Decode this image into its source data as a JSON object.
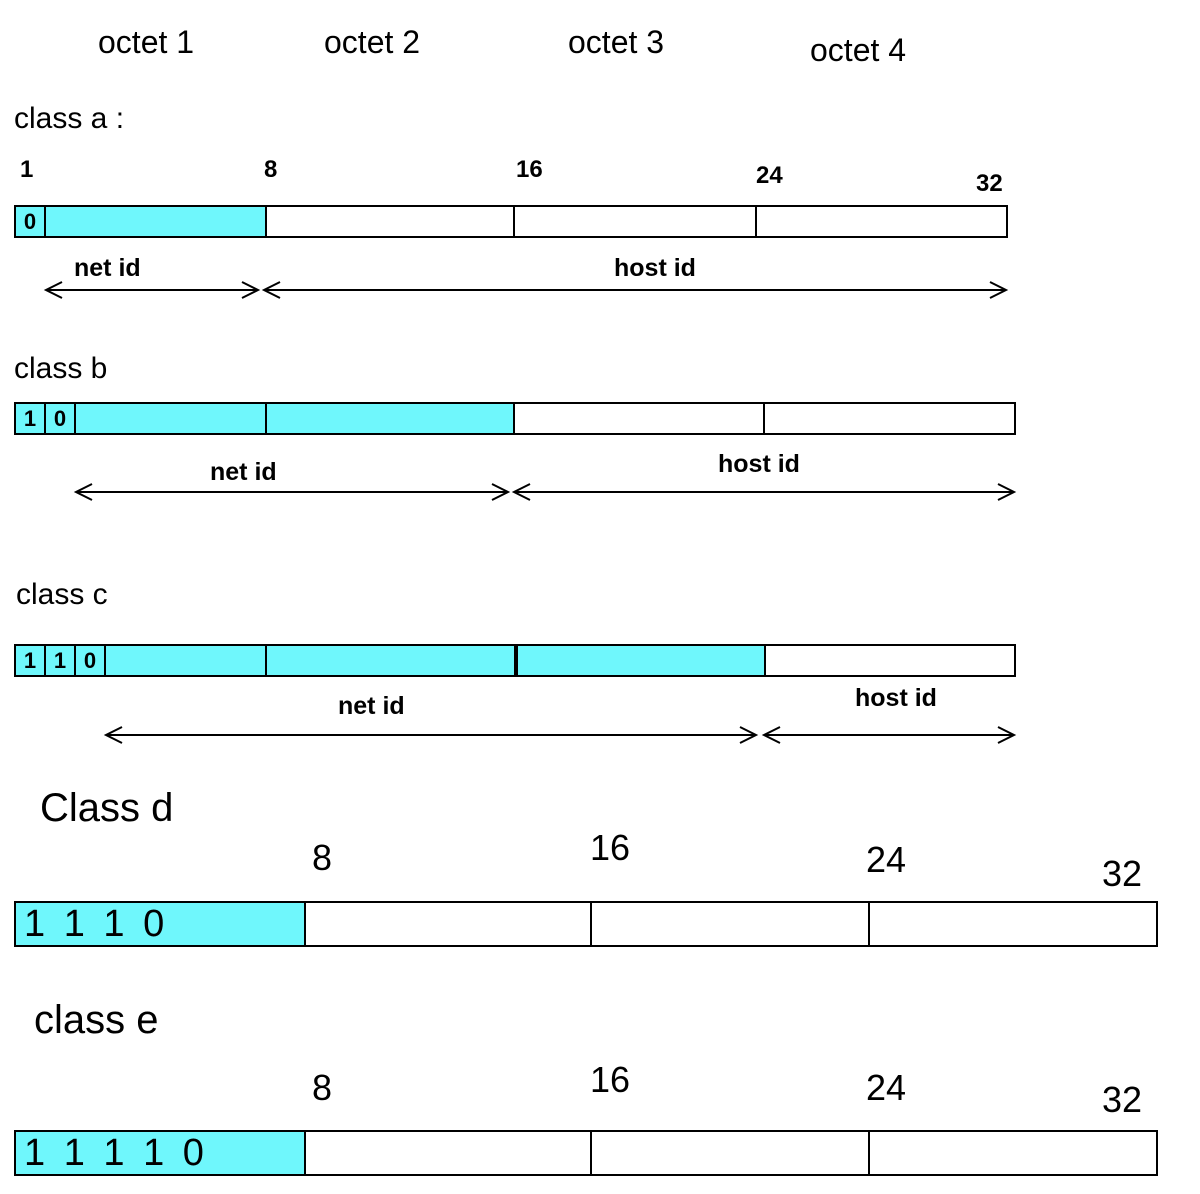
{
  "octets": [
    "octet 1",
    "octet 2",
    "octet 3",
    "octet 4"
  ],
  "class_a": {
    "label": "class a :",
    "ticks": [
      "1",
      "8",
      "16",
      "24",
      "32"
    ],
    "prefix_bits": [
      "0"
    ],
    "net_label": "net id",
    "host_label": "host id"
  },
  "class_b": {
    "label": "class b",
    "prefix_bits": [
      "1",
      "0"
    ],
    "net_label": "net id",
    "host_label": "host id"
  },
  "class_c": {
    "label": "class c",
    "prefix_bits": [
      "1",
      "1",
      "0"
    ],
    "net_label": "net id",
    "host_label": "host id"
  },
  "class_d": {
    "label": "Class d",
    "ticks": [
      "8",
      "16",
      "24",
      "32"
    ],
    "prefix": "1 1 1 0"
  },
  "class_e": {
    "label": "class e",
    "ticks": [
      "8",
      "16",
      "24",
      "32"
    ],
    "prefix": "1 1 1 1 0"
  },
  "colors": {
    "network_fill": "#6ff7fc",
    "line": "#000000"
  }
}
